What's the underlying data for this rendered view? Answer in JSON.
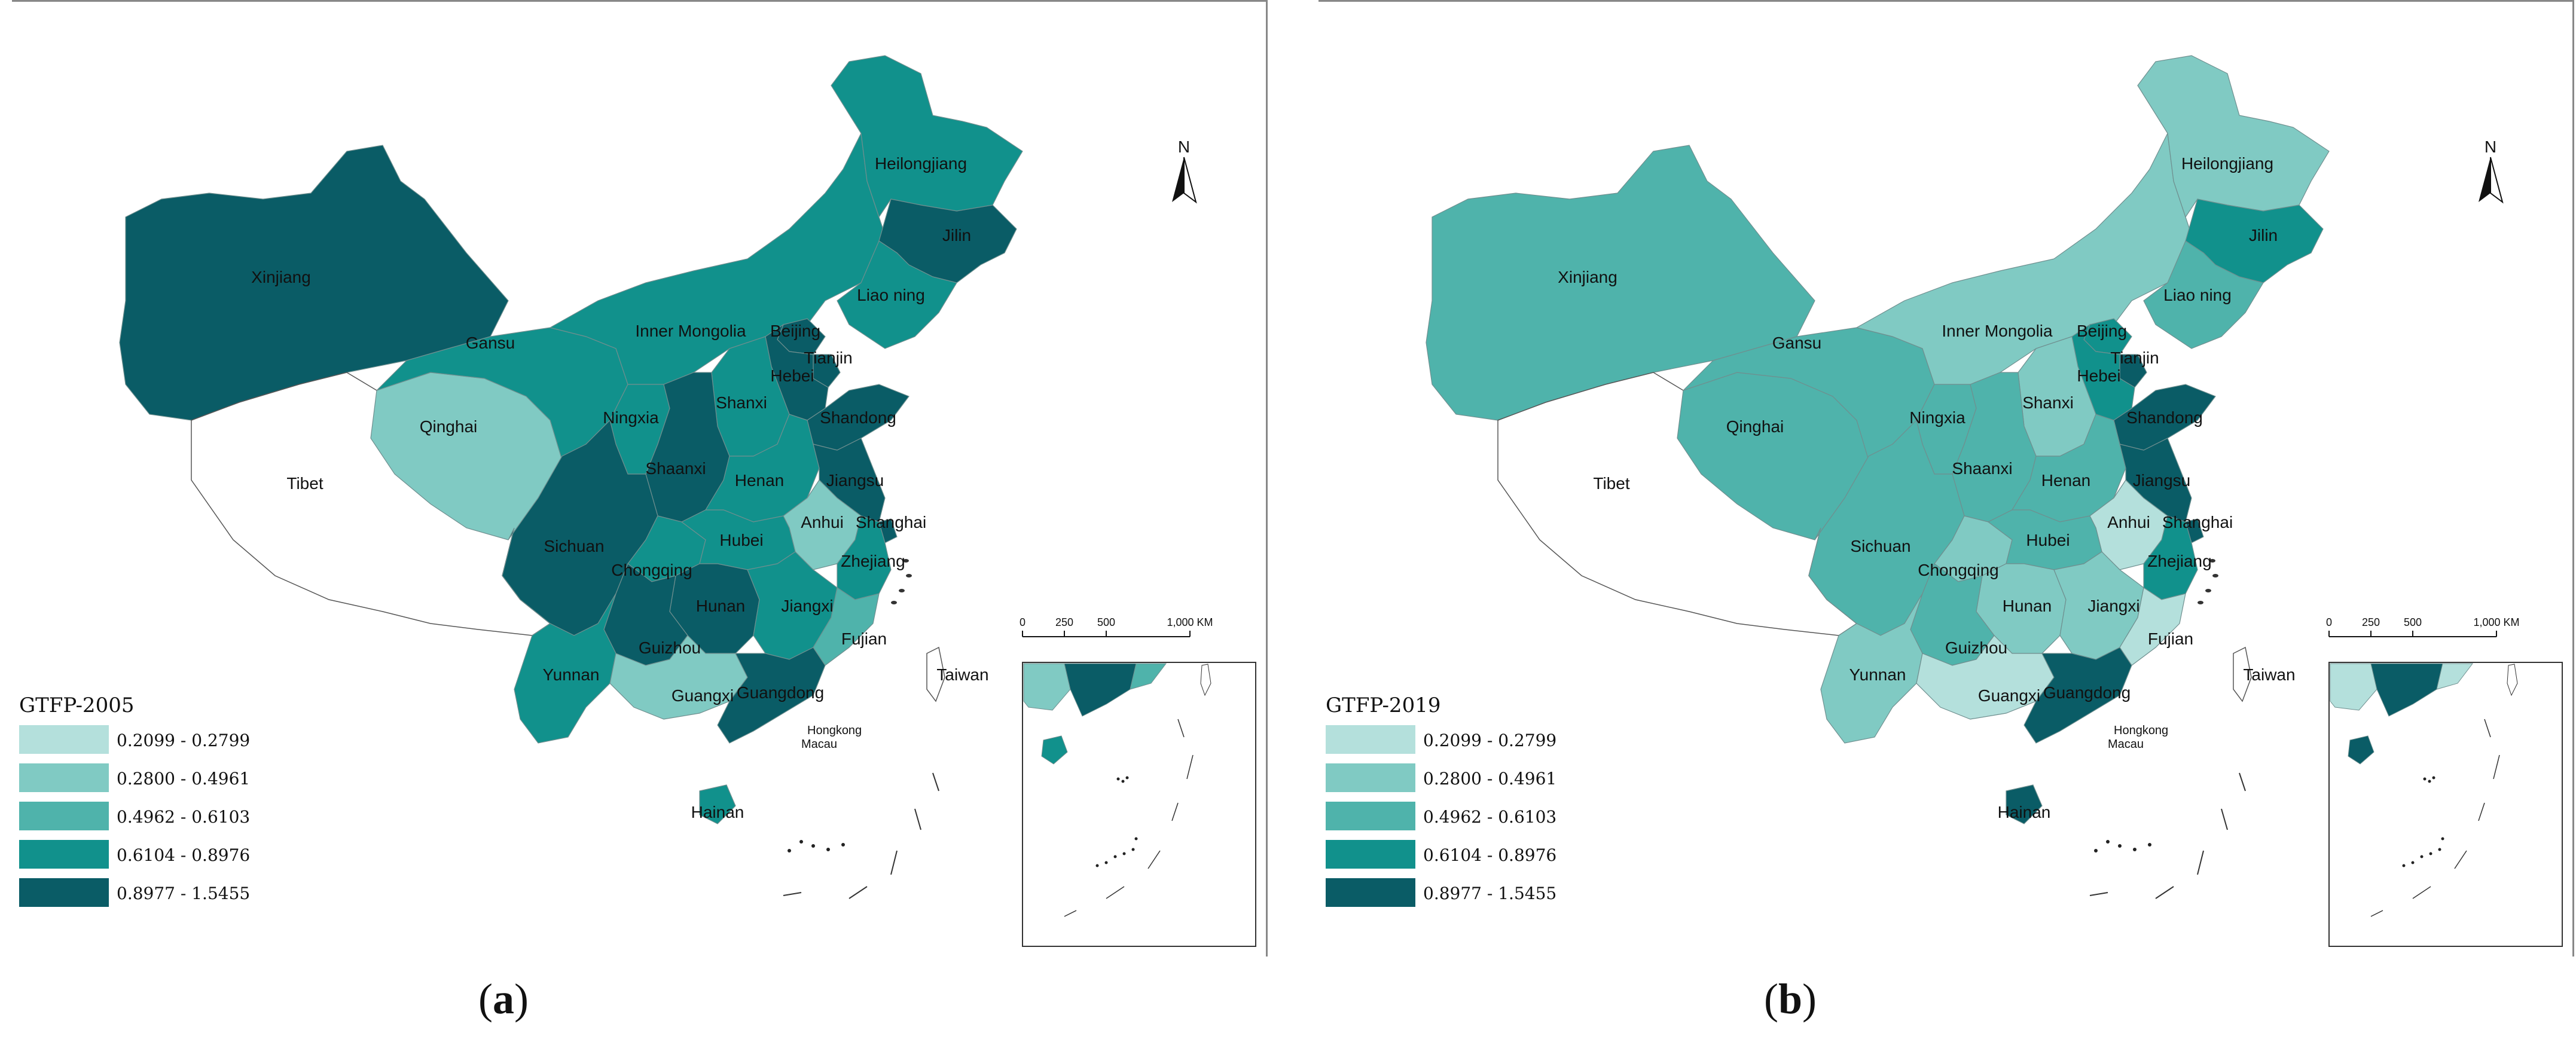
{
  "colors": {
    "c1": "#b4e0dc",
    "c2": "#80cac3",
    "c3": "#4fb3ab",
    "c4": "#11918c",
    "c5": "#0a5c66",
    "none": "#ffffff"
  },
  "legend": {
    "classes": [
      {
        "range": "0.2099 - 0.2799",
        "color_key": "c1"
      },
      {
        "range": "0.2800 - 0.4961",
        "color_key": "c2"
      },
      {
        "range": "0.4962 - 0.6103",
        "color_key": "c3"
      },
      {
        "range": "0.6104 - 0.8976",
        "color_key": "c4"
      },
      {
        "range": "0.8977 - 1.5455",
        "color_key": "c5"
      }
    ]
  },
  "north_label": "N",
  "scale_bar": {
    "ticks": [
      "0",
      "250",
      "500",
      "1,000 KM"
    ]
  },
  "maps": [
    {
      "id": "a",
      "title": "GTFP-2005",
      "caption": "a",
      "classes": {
        "Xinjiang": "c5",
        "Tibet": "none",
        "Qinghai": "c2",
        "Gansu": "c4",
        "Inner Mongolia": "c4",
        "Heilongjiang": "c4",
        "Jilin": "c5",
        "Liao ning": "c4",
        "Beijing": "c5",
        "Tianjin": "c5",
        "Hebei": "c5",
        "Shanxi": "c4",
        "Shandong": "c5",
        "Ningxia": "c4",
        "Shaanxi": "c5",
        "Henan": "c4",
        "Jiangsu": "c5",
        "Anhui": "c2",
        "Shanghai": "c5",
        "Sichuan": "c5",
        "Chongqing": "c4",
        "Hubei": "c4",
        "Zhejiang": "c4",
        "Hunan": "c5",
        "Jiangxi": "c4",
        "Fujian": "c3",
        "Guizhou": "c5",
        "Yunnan": "c4",
        "Guangxi": "c2",
        "Guangdong": "c5",
        "Hainan": "c4",
        "Taiwan": "none"
      }
    },
    {
      "id": "b",
      "title": "GTFP-2019",
      "caption": "b",
      "classes": {
        "Xinjiang": "c3",
        "Tibet": "none",
        "Qinghai": "c3",
        "Gansu": "c3",
        "Inner Mongolia": "c2",
        "Heilongjiang": "c2",
        "Jilin": "c4",
        "Liao ning": "c3",
        "Beijing": "c4",
        "Tianjin": "c5",
        "Hebei": "c4",
        "Shanxi": "c2",
        "Shandong": "c5",
        "Ningxia": "c3",
        "Shaanxi": "c3",
        "Henan": "c3",
        "Jiangsu": "c5",
        "Anhui": "c1",
        "Shanghai": "c5",
        "Sichuan": "c3",
        "Chongqing": "c2",
        "Hubei": "c3",
        "Zhejiang": "c4",
        "Hunan": "c2",
        "Jiangxi": "c2",
        "Fujian": "c1",
        "Guizhou": "c3",
        "Yunnan": "c2",
        "Guangxi": "c1",
        "Guangdong": "c5",
        "Hainan": "c5",
        "Taiwan": "none"
      }
    }
  ],
  "extra_labels": [
    "Hongkong",
    "Macau"
  ]
}
